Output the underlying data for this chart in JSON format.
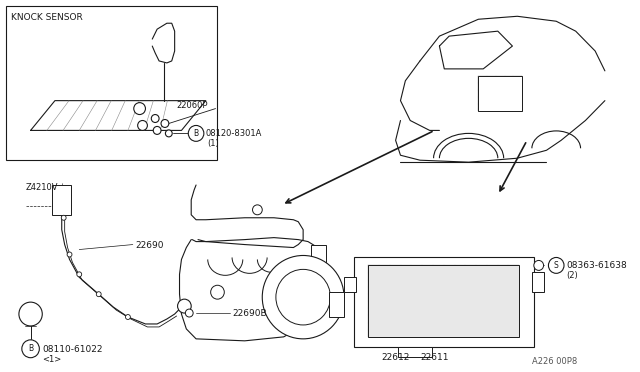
{
  "bg_color": "#ffffff",
  "line_color": "#1a1a1a",
  "labels": {
    "knock_sensor": "KNOCK SENSOR",
    "p22060": "22060P",
    "b08120_label": "B",
    "b08120": "08120-8301A",
    "b08120_sub": "(1)",
    "z24210v": "Z4210V",
    "p22690": "22690",
    "p22690b": "22690B",
    "b08110_label": "B",
    "b08110": "08110-61022",
    "b08110_sub": "<1>",
    "p22612": "22612",
    "p22611": "22611",
    "s08363_label": "S",
    "s08363": "08363-61638",
    "s08363_sub": "(2)",
    "fig_code": "A226 00P8"
  }
}
